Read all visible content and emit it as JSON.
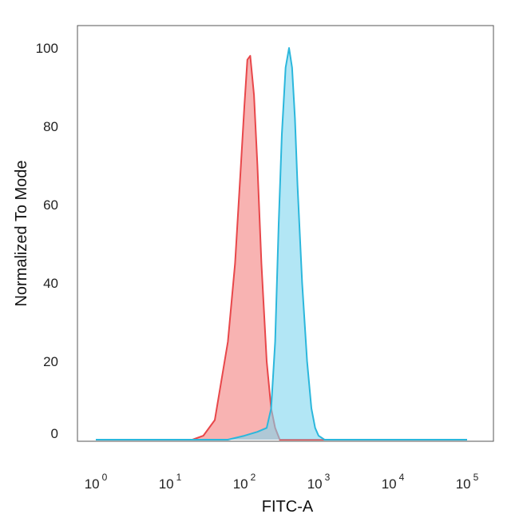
{
  "chart_data": {
    "type": "area",
    "title": "",
    "xlabel": "FITC-A",
    "ylabel": "Normalized To Mode",
    "xscale": "log",
    "xlim": [
      1,
      100000
    ],
    "ylim": [
      0,
      105
    ],
    "grid": false,
    "x_ticks": [
      {
        "base": "10",
        "exp": "0"
      },
      {
        "base": "10",
        "exp": "1"
      },
      {
        "base": "10",
        "exp": "2"
      },
      {
        "base": "10",
        "exp": "3"
      },
      {
        "base": "10",
        "exp": "4"
      },
      {
        "base": "10",
        "exp": "5"
      }
    ],
    "y_ticks": [
      "0",
      "20",
      "40",
      "60",
      "80",
      "100"
    ],
    "series": [
      {
        "color": "#e8474a",
        "fill": "#f4807e",
        "x": [
          1,
          20,
          28,
          40,
          60,
          75,
          90,
          100,
          110,
          120,
          135,
          150,
          170,
          200,
          230,
          260,
          300,
          400,
          1000,
          100000
        ],
        "y": [
          0,
          0,
          1,
          5,
          25,
          45,
          70,
          85,
          97,
          98,
          88,
          70,
          45,
          20,
          8,
          3,
          0,
          0,
          0,
          0
        ]
      },
      {
        "color": "#2bb7dc",
        "fill": "#7fd6ee",
        "x": [
          1,
          60,
          100,
          150,
          200,
          230,
          260,
          290,
          320,
          360,
          400,
          440,
          480,
          520,
          600,
          700,
          800,
          900,
          1000,
          1200,
          100000
        ],
        "y": [
          0,
          0,
          1,
          2,
          3,
          8,
          25,
          55,
          78,
          95,
          100,
          95,
          82,
          65,
          40,
          20,
          8,
          3,
          1,
          0,
          0
        ]
      }
    ]
  }
}
